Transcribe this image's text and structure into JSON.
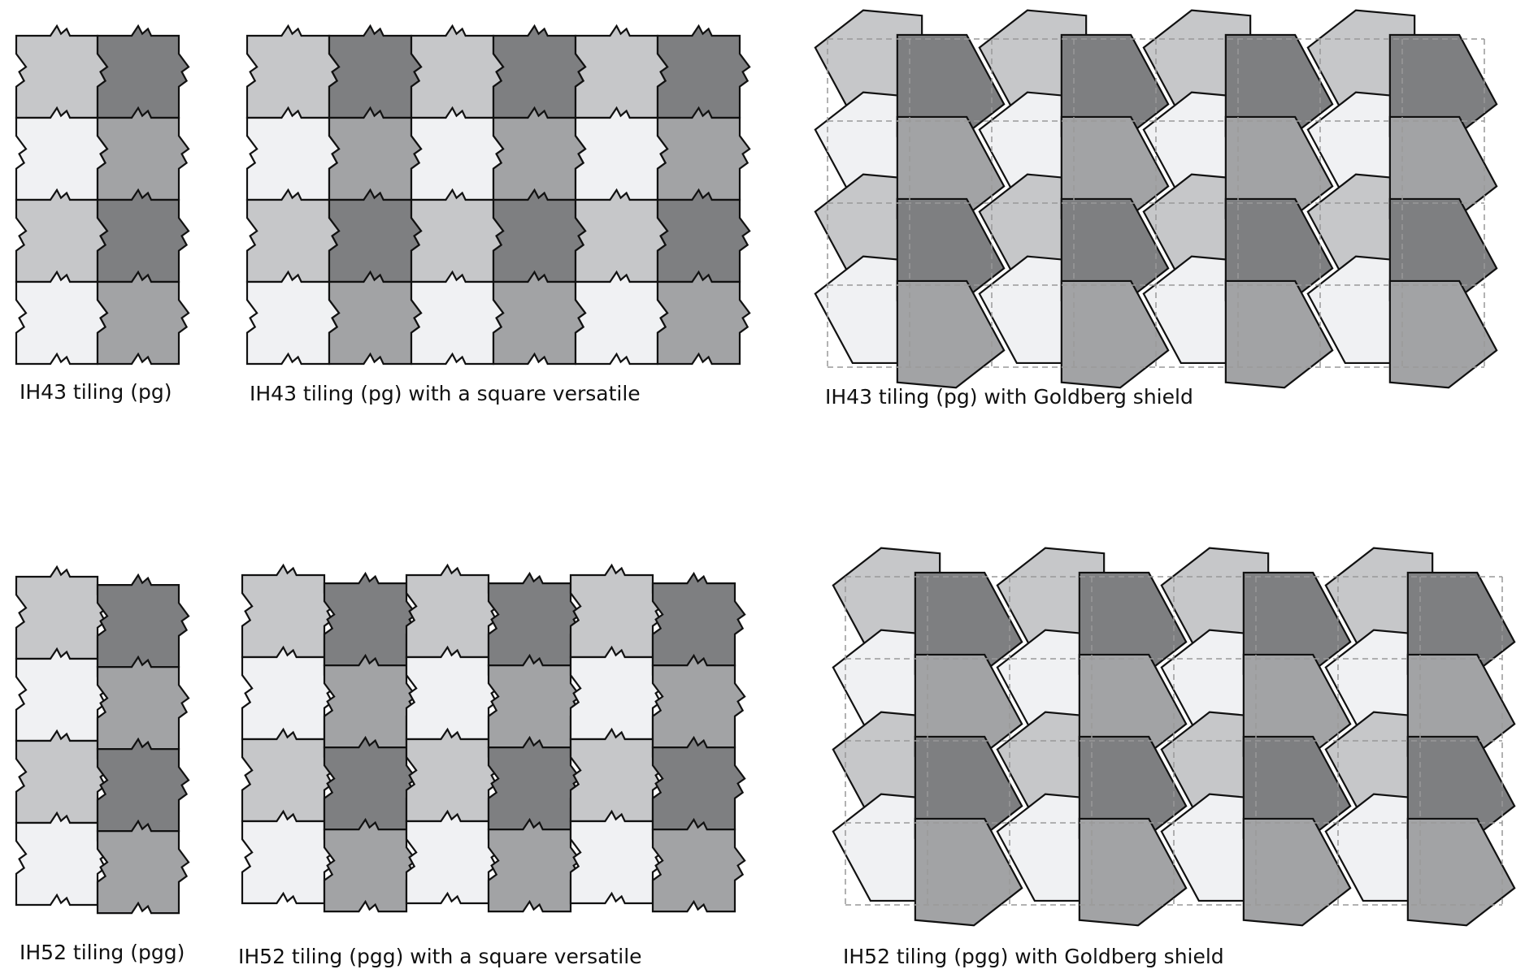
{
  "colors": {
    "shade_light": "#f0f1f3",
    "shade_mid_light": "#c6c7c9",
    "shade_mid": "#a2a3a5",
    "shade_dark": "#7e7f81",
    "outline": "#111111",
    "grid": "#999999"
  },
  "panels": [
    {
      "id": "ih43-pg",
      "caption": "IH43 tiling (pg)",
      "cols": 2,
      "rows": 4,
      "kind": "isohedral"
    },
    {
      "id": "ih43-pg-square-versatile",
      "caption": "IH43 tiling (pg) with a square versatile",
      "cols": 6,
      "rows": 4,
      "kind": "isohedral"
    },
    {
      "id": "ih43-pg-goldberg",
      "caption": "IH43 tiling (pg) with Goldberg shield",
      "cols": 8,
      "rows": 4,
      "kind": "goldberg"
    },
    {
      "id": "ih52-pgg",
      "caption": "IH52 tiling (pgg)",
      "cols": 2,
      "rows": 4,
      "kind": "isohedral"
    },
    {
      "id": "ih52-pgg-square-versatile",
      "caption": "IH52 tiling (pgg) with a square versatile",
      "cols": 6,
      "rows": 4,
      "kind": "isohedral"
    },
    {
      "id": "ih52-pgg-goldberg",
      "caption": "IH52 tiling (pgg) with Goldberg shield",
      "cols": 8,
      "rows": 4,
      "kind": "goldberg"
    }
  ]
}
